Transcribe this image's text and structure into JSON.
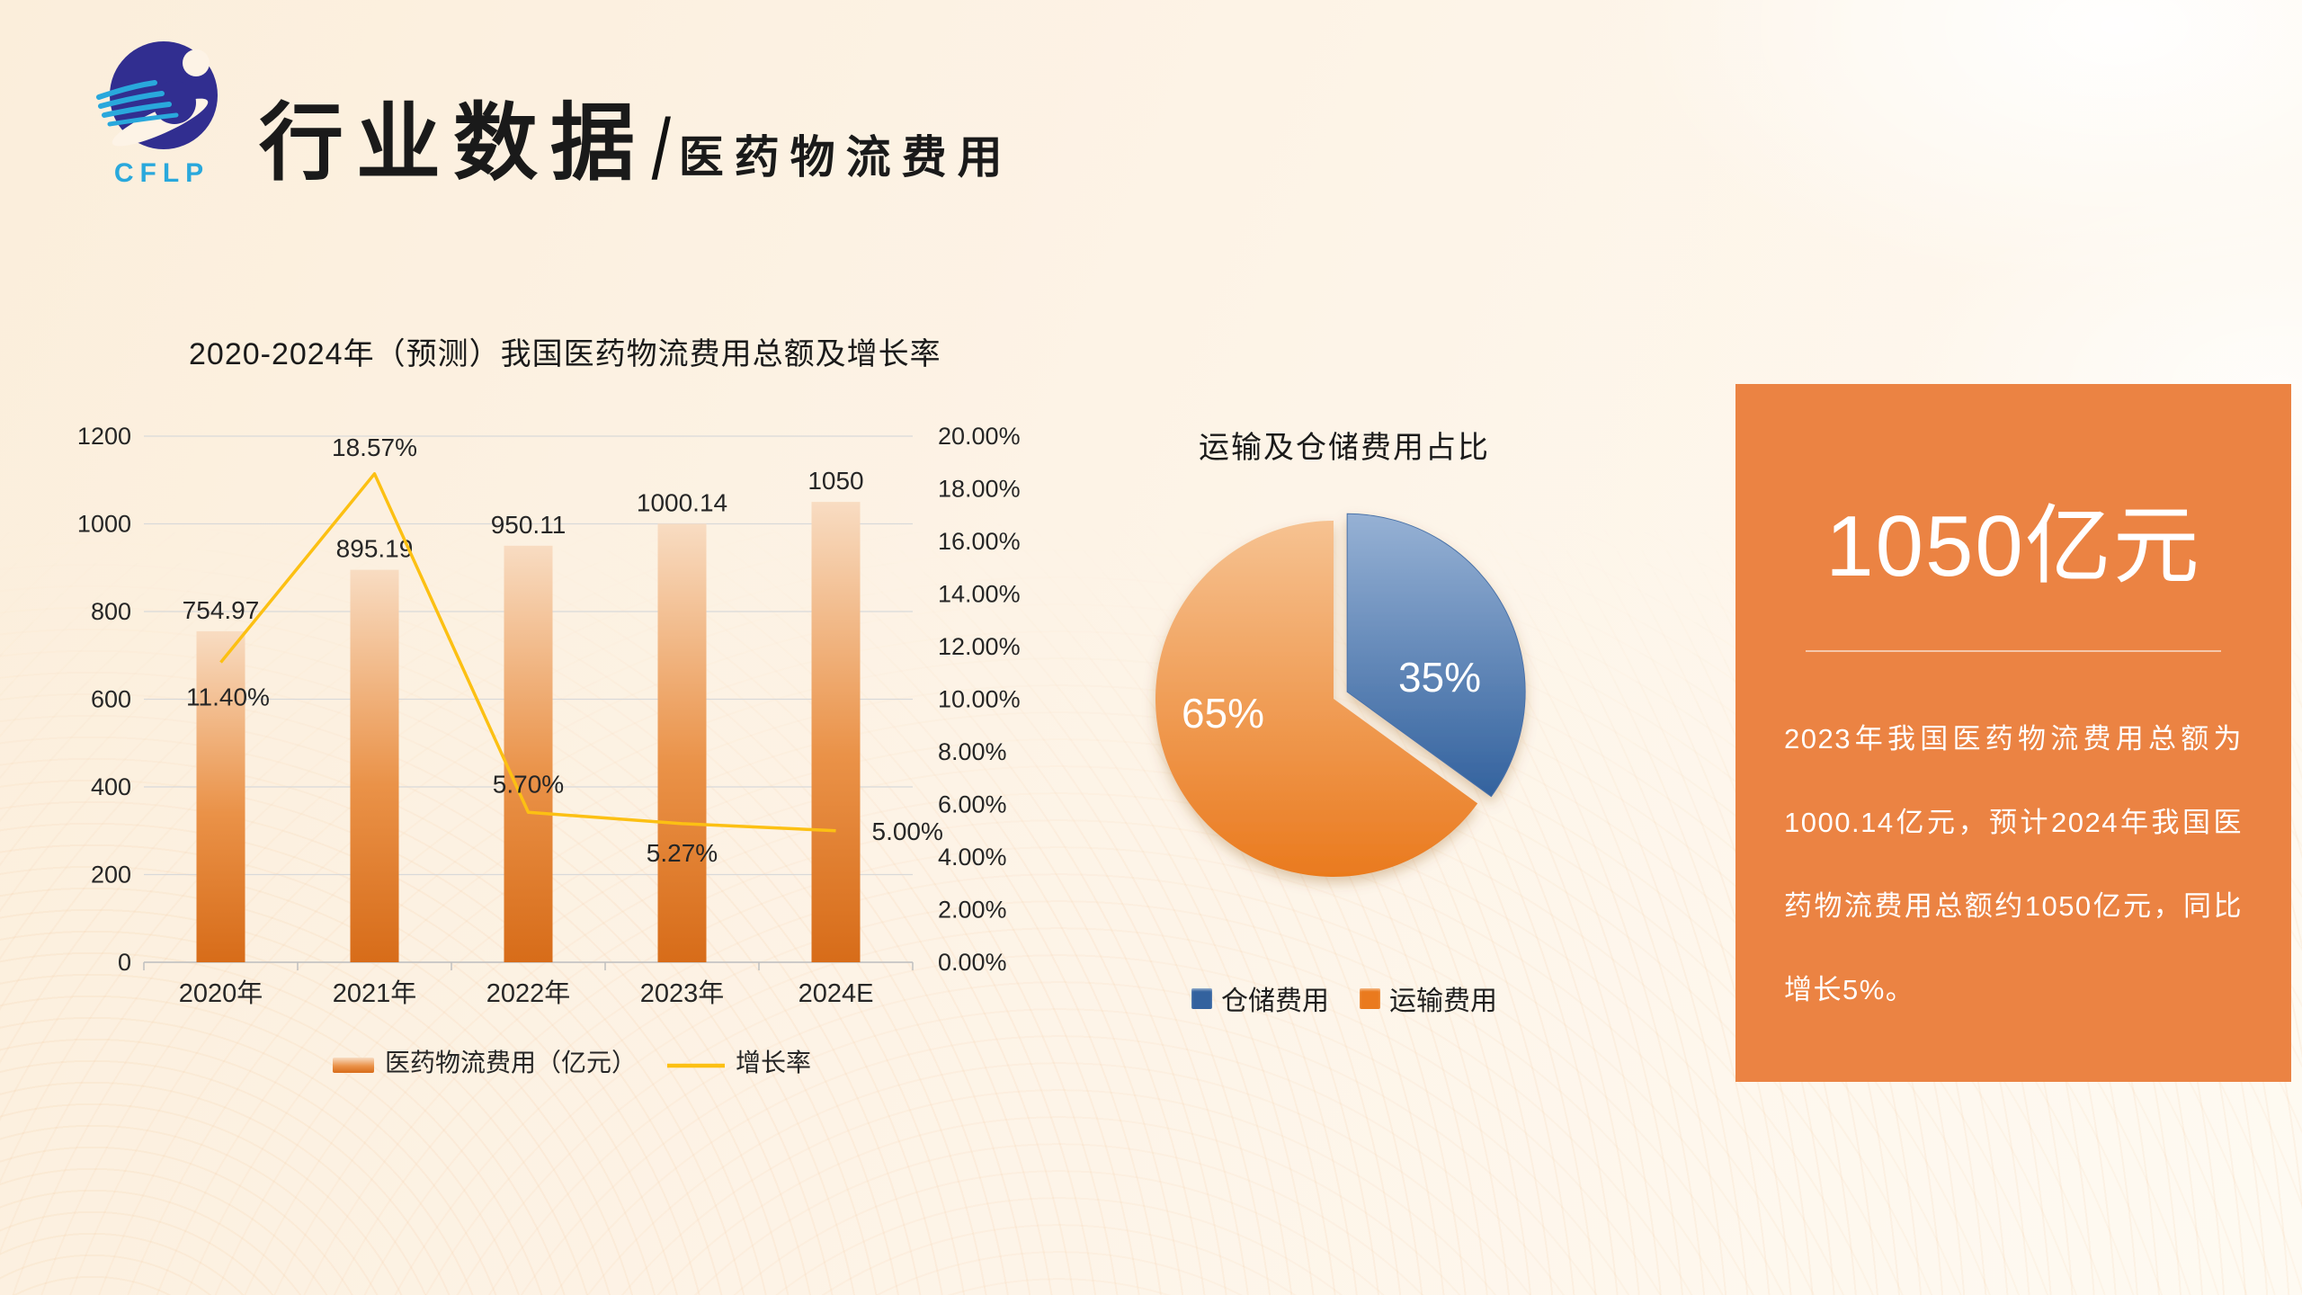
{
  "header": {
    "logo_text": "CFLP",
    "title": "行业数据",
    "separator": "/",
    "subtitle": "医药物流费用",
    "logo_colors": {
      "ball": "#312e90",
      "swoosh": "#29a8dc"
    }
  },
  "chart_data": [
    {
      "type": "bar",
      "title": "2020-2024年（预测）我国医药物流费用总额及增长率",
      "categories": [
        "2020年",
        "2021年",
        "2022年",
        "2023年",
        "2024E"
      ],
      "series": [
        {
          "name": "医药物流费用（亿元）",
          "type": "bar",
          "values": [
            754.97,
            895.19,
            950.11,
            1000.14,
            1050
          ],
          "labels": [
            "754.97",
            "895.19",
            "950.11",
            "1000.14",
            "1050"
          ],
          "color_top": "#f8dcc2",
          "color_mid": "#ea9248",
          "color_bottom": "#d76c19"
        },
        {
          "name": "增长率",
          "type": "line",
          "values": [
            11.4,
            18.57,
            5.7,
            5.27,
            5.0
          ],
          "labels": [
            "11.40%",
            "18.57%",
            "5.70%",
            "5.27%",
            "5.00%"
          ],
          "color": "#fcc013"
        }
      ],
      "left_axis": {
        "min": 0,
        "max": 1200,
        "step": 200,
        "ticks": [
          "0",
          "200",
          "400",
          "600",
          "800",
          "1000",
          "1200"
        ]
      },
      "right_axis": {
        "min": 0,
        "max": 20,
        "step": 2,
        "ticks": [
          "0.00%",
          "2.00%",
          "4.00%",
          "6.00%",
          "8.00%",
          "10.00%",
          "12.00%",
          "14.00%",
          "16.00%",
          "18.00%",
          "20.00%"
        ]
      },
      "grid": true,
      "legend_position": "bottom",
      "grid_color": "#d9d9d9",
      "axis_text_color": "#262626"
    },
    {
      "type": "pie",
      "title": "运输及仓储费用占比",
      "slices": [
        {
          "label": "仓储费用",
          "value": 35,
          "display": "35%",
          "color": "#33629e",
          "color_light": "#96b1d4",
          "exploded": true
        },
        {
          "label": "运输费用",
          "value": 65,
          "display": "65%",
          "color": "#ea7a1e",
          "color_light": "#f6c291",
          "exploded": false
        }
      ],
      "start_angle_deg": 0,
      "legend_position": "bottom",
      "label_color": "#ffffff"
    }
  ],
  "info_card": {
    "headline": "1050亿元",
    "body": "2023年我国医药物流费用总额为1000.14亿元，预计2024年我国医药物流费用总额约1050亿元，同比增长5%。",
    "bg_color": "#eb8343"
  }
}
